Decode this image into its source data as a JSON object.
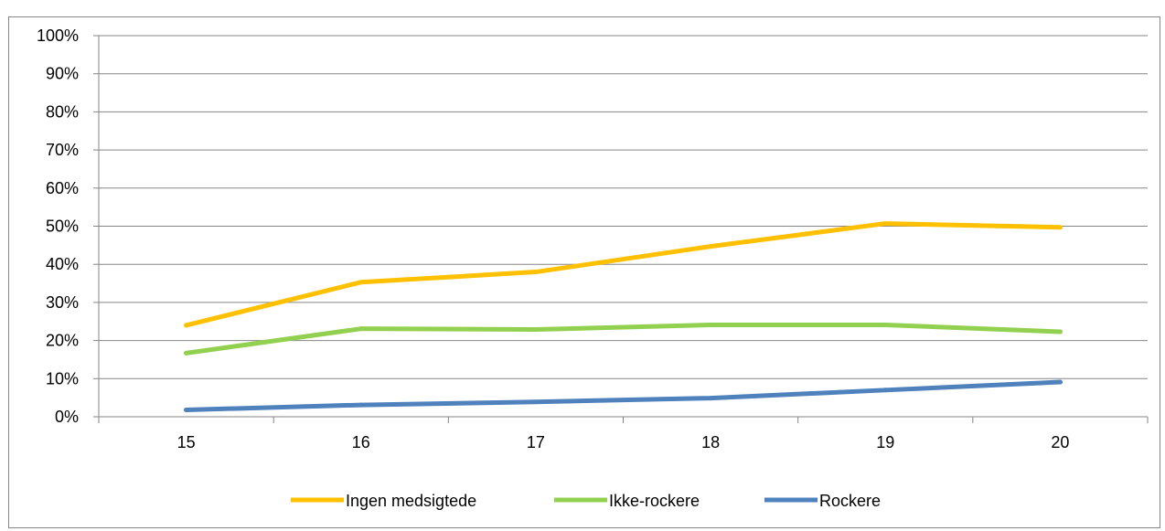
{
  "chart_data": {
    "type": "line",
    "title": "",
    "xlabel": "",
    "ylabel": "",
    "categories": [
      "15",
      "16",
      "17",
      "18",
      "19",
      "20"
    ],
    "ylim": [
      0,
      100
    ],
    "y_ticks": [
      "0%",
      "10%",
      "20%",
      "30%",
      "40%",
      "50%",
      "60%",
      "70%",
      "80%",
      "90%",
      "100%"
    ],
    "grid": "horizontal",
    "legend_position": "bottom",
    "series": [
      {
        "name": "Ingen medsigtede",
        "color": "#FFC000",
        "values": [
          24,
          35.3,
          38,
          44.7,
          50.7,
          49.7
        ]
      },
      {
        "name": "Ikke-rockere",
        "color": "#92D050",
        "values": [
          16.7,
          23.1,
          22.9,
          24.1,
          24.1,
          22.3
        ]
      },
      {
        "name": "Rockere",
        "color": "#4F81BD",
        "values": [
          1.8,
          3.1,
          3.9,
          4.9,
          7,
          9.1
        ]
      }
    ]
  }
}
